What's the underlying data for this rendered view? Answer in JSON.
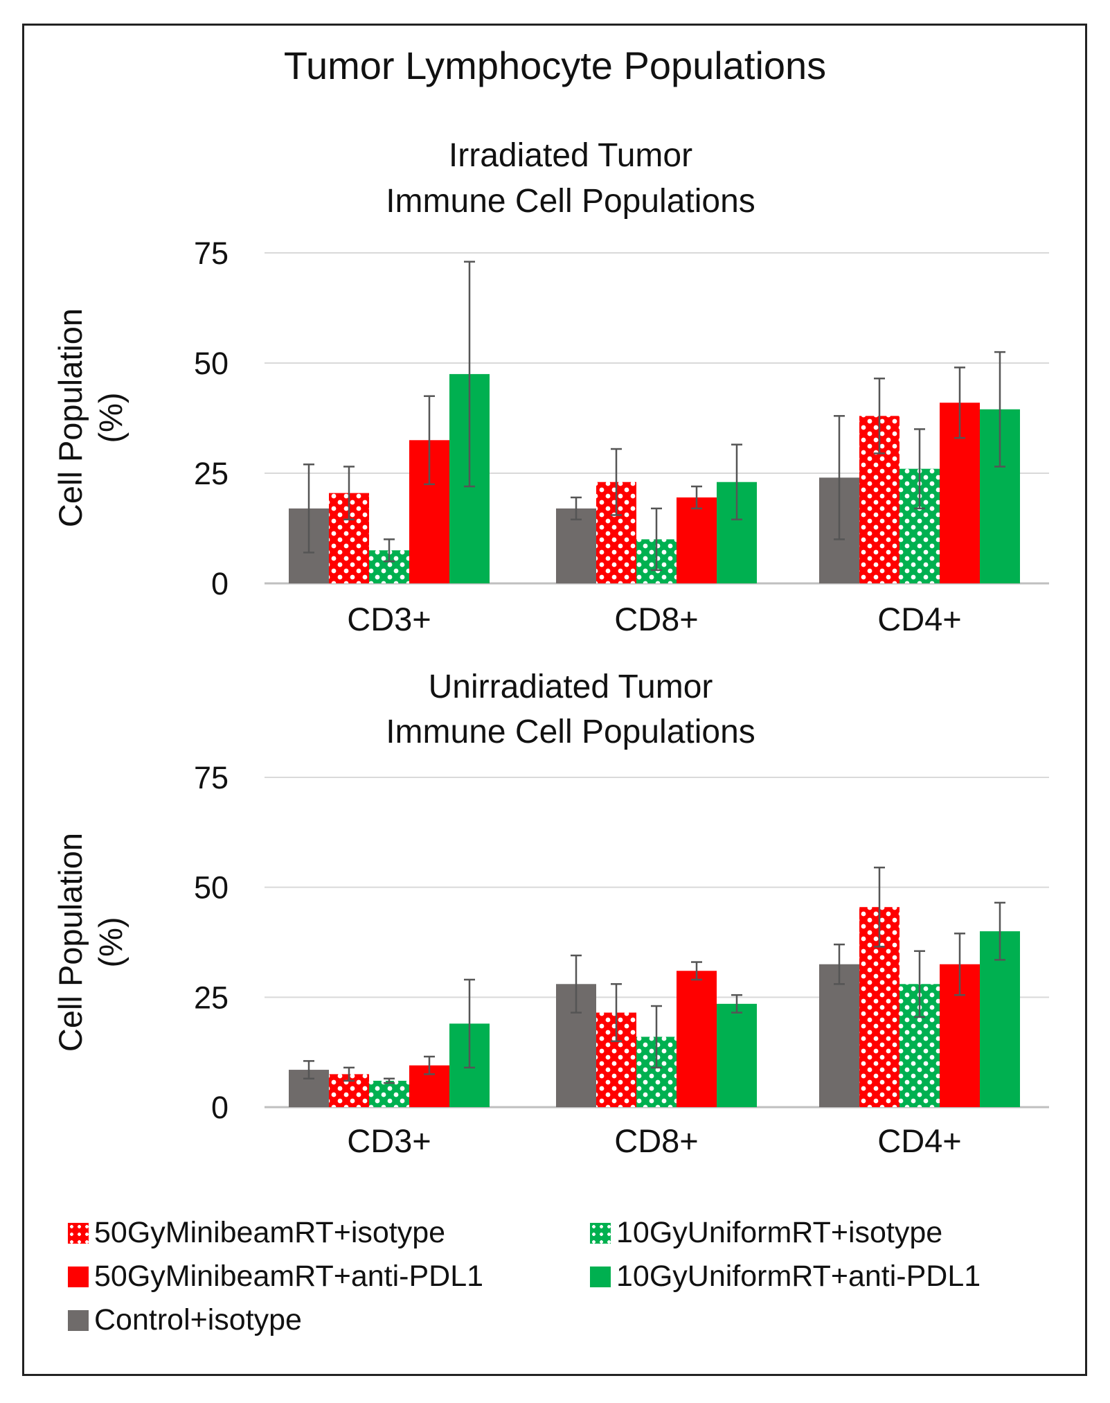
{
  "title": "Tumor Lymphocyte Populations",
  "colors": {
    "control": "#6f6b6a",
    "red": "#ff0000",
    "green": "#00b050",
    "grid": "#d9d9d9",
    "error": "#555555"
  },
  "legend": [
    {
      "label": "50GyMinibeamRT+isotype",
      "color": "#ff0000",
      "pattern": "dots",
      "icon": "red-dotted-square-icon"
    },
    {
      "label": "10GyUniformRT+isotype",
      "color": "#00b050",
      "pattern": "dots",
      "icon": "green-dotted-square-icon"
    },
    {
      "label": "50GyMinibeamRT+anti-PDL1",
      "color": "#ff0000",
      "pattern": "solid",
      "icon": "red-square-icon"
    },
    {
      "label": "10GyUniformRT+anti-PDL1",
      "color": "#00b050",
      "pattern": "solid",
      "icon": "green-square-icon"
    },
    {
      "label": "Control+isotype",
      "color": "#6f6b6a",
      "pattern": "solid",
      "icon": "gray-square-icon"
    }
  ],
  "chart_data": [
    {
      "type": "bar",
      "title": [
        "Irradiated Tumor",
        "Immune Cell Populations"
      ],
      "ylabel": [
        "Cell Population",
        "(%)"
      ],
      "xlabel": "",
      "ylim": [
        0,
        75
      ],
      "yticks": [
        0,
        25,
        50,
        75
      ],
      "categories": [
        "CD3+",
        "CD8+",
        "CD4+"
      ],
      "series": [
        {
          "name": "Control+isotype",
          "values": [
            17,
            17,
            24
          ],
          "errors": [
            10,
            2.5,
            14
          ]
        },
        {
          "name": "50GyMinibeamRT+isotype",
          "values": [
            20.5,
            23,
            38
          ],
          "errors": [
            6,
            7.5,
            8.5
          ]
        },
        {
          "name": "10GyUniformRT+isotype",
          "values": [
            7.5,
            10,
            26
          ],
          "errors": [
            2.5,
            7,
            9
          ]
        },
        {
          "name": "50GyMinibeamRT+anti-PDL1",
          "values": [
            32.5,
            19.5,
            41
          ],
          "errors": [
            10,
            2.5,
            8
          ]
        },
        {
          "name": "10GyUniformRT+anti-PDL1",
          "values": [
            47.5,
            23,
            39.5
          ],
          "errors": [
            25.5,
            8.5,
            13
          ]
        }
      ]
    },
    {
      "type": "bar",
      "title": [
        "Unirradiated Tumor",
        "Immune Cell Populations"
      ],
      "ylabel": [
        "Cell Population",
        "(%)"
      ],
      "xlabel": "",
      "ylim": [
        0,
        75
      ],
      "yticks": [
        0,
        25,
        50,
        75
      ],
      "categories": [
        "CD3+",
        "CD8+",
        "CD4+"
      ],
      "series": [
        {
          "name": "Control+isotype",
          "values": [
            8.5,
            28,
            32.5
          ],
          "errors": [
            2,
            6.5,
            4.5
          ]
        },
        {
          "name": "50GyMinibeamRT+isotype",
          "values": [
            7.5,
            21.5,
            45.5
          ],
          "errors": [
            1.5,
            6.5,
            9
          ]
        },
        {
          "name": "10GyUniformRT+isotype",
          "values": [
            6,
            16,
            28
          ],
          "errors": [
            0.5,
            7,
            7.5
          ]
        },
        {
          "name": "50GyMinibeamRT+anti-PDL1",
          "values": [
            9.5,
            31,
            32.5
          ],
          "errors": [
            2,
            2,
            7
          ]
        },
        {
          "name": "10GyUniformRT+anti-PDL1",
          "values": [
            19,
            23.5,
            40
          ],
          "errors": [
            10,
            2,
            6.5
          ]
        }
      ]
    }
  ]
}
